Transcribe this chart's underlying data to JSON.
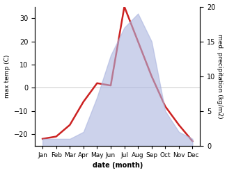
{
  "months": [
    "Jan",
    "Feb",
    "Mar",
    "Apr",
    "May",
    "Jun",
    "Jul",
    "Aug",
    "Sep",
    "Oct",
    "Nov",
    "Dec"
  ],
  "temperature": [
    -22,
    -21,
    -16,
    -6,
    2,
    1,
    35,
    20,
    5,
    -8,
    -16,
    -23
  ],
  "precipitation": [
    1,
    1,
    1,
    2,
    7,
    13,
    17,
    19,
    15,
    5,
    2,
    1
  ],
  "temp_ylim": [
    -25,
    35
  ],
  "precip_ylim": [
    0,
    20
  ],
  "temp_yticks": [
    -20,
    -10,
    0,
    10,
    20,
    30
  ],
  "precip_yticks": [
    0,
    5,
    10,
    15,
    20
  ],
  "fill_color": "#aab4df",
  "fill_alpha": 0.6,
  "line_color": "#cc2222",
  "line_width": 1.8,
  "xlabel": "date (month)",
  "ylabel_left": "max temp (C)",
  "ylabel_right": "med. precipitation (kg/m2)",
  "bg_color": "#ffffff"
}
